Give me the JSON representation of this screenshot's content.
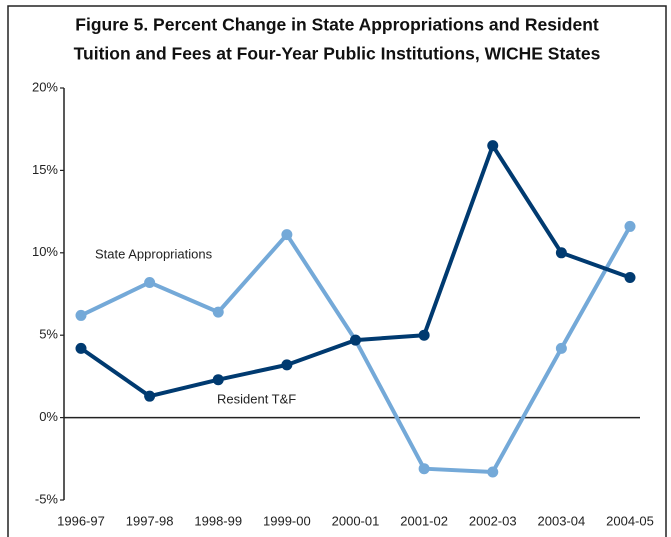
{
  "chart_data": {
    "type": "line",
    "title": [
      "Figure 5. Percent Change in State Appropriations and Resident",
      "Tuition and Fees at Four-Year Public Institutions, WICHE States"
    ],
    "categories": [
      "1996-97",
      "1997-98",
      "1998-99",
      "1999-00",
      "2000-01",
      "2001-02",
      "2002-03",
      "2003-04",
      "2004-05"
    ],
    "series": [
      {
        "name": "State Appropriations",
        "color": "#74a9d8",
        "values": [
          6.2,
          8.2,
          6.4,
          11.1,
          4.7,
          -3.1,
          -3.3,
          4.2,
          11.6
        ]
      },
      {
        "name": "Resident T&F",
        "color": "#003a70",
        "values": [
          4.2,
          1.3,
          2.3,
          3.2,
          4.7,
          5.0,
          16.5,
          10.0,
          8.5
        ]
      }
    ],
    "ylim": [
      -5,
      20
    ],
    "yticks": [
      {
        "value": -5,
        "label": "-5%"
      },
      {
        "value": 0,
        "label": "0%"
      },
      {
        "value": 5,
        "label": "5%"
      },
      {
        "value": 10,
        "label": "10%"
      },
      {
        "value": 15,
        "label": "15%"
      },
      {
        "value": 20,
        "label": "20%"
      }
    ],
    "grid": false
  }
}
